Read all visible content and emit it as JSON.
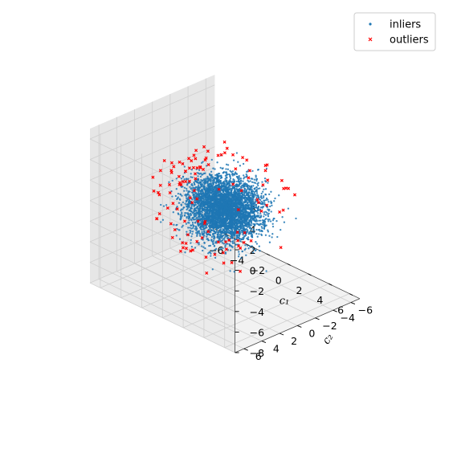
{
  "chart_data": {
    "type": "scatter",
    "projection": "3d",
    "xlabel": "c₁",
    "ylabel": "c₂",
    "zlabel": "",
    "xlim": [
      -7,
      7
    ],
    "ylim": [
      -7,
      7
    ],
    "zlim": [
      -8,
      7
    ],
    "xticks": [
      "−6",
      "−4",
      "−2",
      "0",
      "2",
      "4",
      "6"
    ],
    "yticks": [
      "−6",
      "−4",
      "−2",
      "0",
      "2",
      "4",
      "6"
    ],
    "zticks": [
      "−8",
      "−6",
      "−4",
      "−2",
      "0",
      "2",
      "4",
      "6"
    ],
    "grid": true,
    "legend": {
      "position": "top-right"
    },
    "colors": {
      "inliers": "#1f77b4",
      "outliers": "#ff0000"
    },
    "series": [
      {
        "name": "inliers",
        "marker": "dot",
        "distribution": "standard normal, 3 dimensions",
        "count_approx": 20000
      },
      {
        "name": "outliers",
        "marker": "x",
        "count_approx": 120
      }
    ]
  }
}
